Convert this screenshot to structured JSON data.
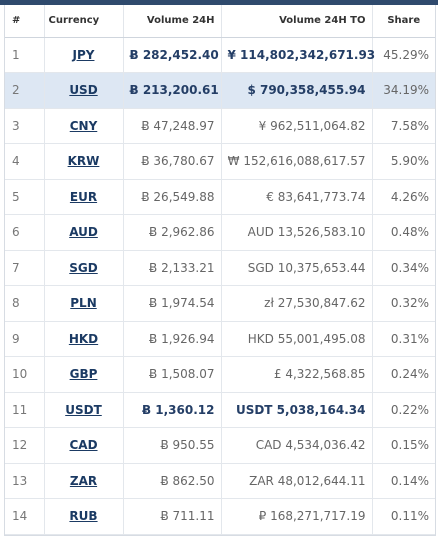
{
  "header": {
    "num": "#",
    "currency": "Currency",
    "volume": "Volume 24H",
    "volume_to": "Volume 24H TO",
    "share": "Share"
  },
  "rows": [
    {
      "num": "1",
      "currency": "JPY",
      "volume": "Ƀ 282,452.40",
      "volume_to": "¥ 114,802,342,671.93",
      "share": "45.29%",
      "bold": true,
      "selected": false
    },
    {
      "num": "2",
      "currency": "USD",
      "volume": "Ƀ 213,200.61",
      "volume_to": "$ 790,358,455.94",
      "share": "34.19%",
      "bold": true,
      "selected": true
    },
    {
      "num": "3",
      "currency": "CNY",
      "volume": "Ƀ 47,248.97",
      "volume_to": "¥ 962,511,064.82",
      "share": "7.58%",
      "bold": false,
      "selected": false
    },
    {
      "num": "4",
      "currency": "KRW",
      "volume": "Ƀ 36,780.67",
      "volume_to": "₩ 152,616,088,617.57",
      "share": "5.90%",
      "bold": false,
      "selected": false
    },
    {
      "num": "5",
      "currency": "EUR",
      "volume": "Ƀ 26,549.88",
      "volume_to": "€ 83,641,773.74",
      "share": "4.26%",
      "bold": false,
      "selected": false
    },
    {
      "num": "6",
      "currency": "AUD",
      "volume": "Ƀ 2,962.86",
      "volume_to": "AUD 13,526,583.10",
      "share": "0.48%",
      "bold": false,
      "selected": false
    },
    {
      "num": "7",
      "currency": "SGD",
      "volume": "Ƀ 2,133.21",
      "volume_to": "SGD 10,375,653.44",
      "share": "0.34%",
      "bold": false,
      "selected": false
    },
    {
      "num": "8",
      "currency": "PLN",
      "volume": "Ƀ 1,974.54",
      "volume_to": "zł 27,530,847.62",
      "share": "0.32%",
      "bold": false,
      "selected": false
    },
    {
      "num": "9",
      "currency": "HKD",
      "volume": "Ƀ 1,926.94",
      "volume_to": "HKD 55,001,495.08",
      "share": "0.31%",
      "bold": false,
      "selected": false
    },
    {
      "num": "10",
      "currency": "GBP",
      "volume": "Ƀ 1,508.07",
      "volume_to": "£ 4,322,568.85",
      "share": "0.24%",
      "bold": false,
      "selected": false
    },
    {
      "num": "11",
      "currency": "USDT",
      "volume": "Ƀ 1,360.12",
      "volume_to": "USDT 5,038,164.34",
      "share": "0.22%",
      "bold": true,
      "selected": false
    },
    {
      "num": "12",
      "currency": "CAD",
      "volume": "Ƀ 950.55",
      "volume_to": "CAD 4,534,036.42",
      "share": "0.15%",
      "bold": false,
      "selected": false
    },
    {
      "num": "13",
      "currency": "ZAR",
      "volume": "Ƀ 862.50",
      "volume_to": "ZAR 48,012,644.11",
      "share": "0.14%",
      "bold": false,
      "selected": false
    },
    {
      "num": "14",
      "currency": "RUB",
      "volume": "Ƀ 711.11",
      "volume_to": "₽ 168,271,717.19",
      "share": "0.11%",
      "bold": false,
      "selected": false
    }
  ],
  "colors": {
    "top_bar": "#2f4a6d",
    "link": "#1b3a63",
    "bold_value": "#243e66",
    "selected_row": "#dde7f3"
  }
}
